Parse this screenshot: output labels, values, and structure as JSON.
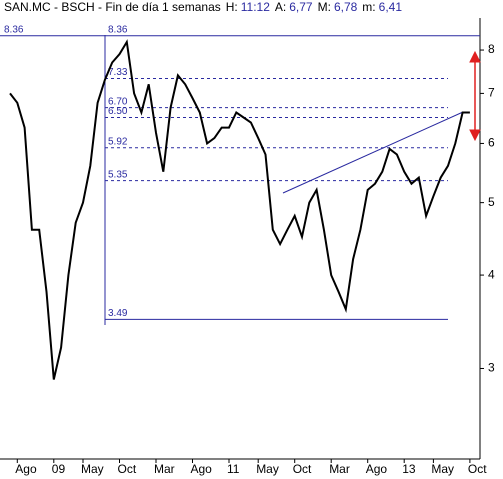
{
  "chart_data": {
    "type": "line",
    "title": "SAN.MC - BSCH - Fin de día 1 semanas",
    "stats": [
      {
        "label": "H:",
        "value": "11:12"
      },
      {
        "label": "A:",
        "value": "6,77"
      },
      {
        "label": "M:",
        "value": "6,78"
      },
      {
        "label": "m:",
        "value": "6,41"
      }
    ],
    "categories": [
      null,
      "Ago",
      null,
      null,
      null,
      null,
      "09",
      null,
      null,
      null,
      "May",
      null,
      null,
      null,
      null,
      "Oct",
      null,
      null,
      null,
      null,
      "Mar",
      null,
      null,
      null,
      null,
      "Ago",
      null,
      null,
      null,
      null,
      "11",
      null,
      null,
      null,
      "May",
      null,
      null,
      null,
      null,
      "Oct",
      null,
      null,
      null,
      null,
      "Mar",
      null,
      null,
      null,
      null,
      "Ago",
      null,
      null,
      null,
      null,
      "13",
      null,
      null,
      null,
      "May",
      null,
      null,
      null,
      null,
      "Oct"
    ],
    "series": [
      {
        "name": "SAN.MC",
        "color": "#000000",
        "values": [
          7.0,
          6.8,
          6.3,
          4.6,
          4.6,
          3.8,
          2.9,
          3.2,
          4.0,
          4.7,
          5.0,
          5.6,
          6.8,
          7.3,
          7.7,
          7.9,
          8.2,
          7.0,
          6.6,
          7.2,
          6.2,
          5.5,
          6.7,
          7.4,
          7.2,
          6.9,
          6.6,
          6.0,
          6.1,
          6.3,
          6.3,
          6.6,
          6.5,
          6.4,
          6.1,
          5.8,
          4.6,
          4.4,
          4.6,
          4.8,
          4.5,
          5.0,
          5.2,
          4.6,
          4.0,
          3.8,
          3.6,
          4.2,
          4.6,
          5.2,
          5.3,
          5.5,
          5.9,
          5.8,
          5.5,
          5.3,
          5.4,
          4.8,
          5.1,
          5.4,
          5.6,
          6.0,
          6.6,
          6.6
        ]
      }
    ],
    "levels": [
      8.36,
      7.33,
      {
        "value": 6.7,
        "label": "6.70"
      },
      {
        "value": 6.5,
        "label": "6.50"
      },
      5.92,
      5.35,
      3.49
    ],
    "level_styles": [
      "solid",
      "dashed",
      "dashed",
      "dashed",
      "dashed",
      "dashed",
      "solid"
    ],
    "level_color": "#2a2aa0",
    "ylim": [
      2.27,
      8.83
    ],
    "yticks": [
      3,
      4,
      5,
      6,
      7,
      8
    ],
    "log_scale": true
  }
}
